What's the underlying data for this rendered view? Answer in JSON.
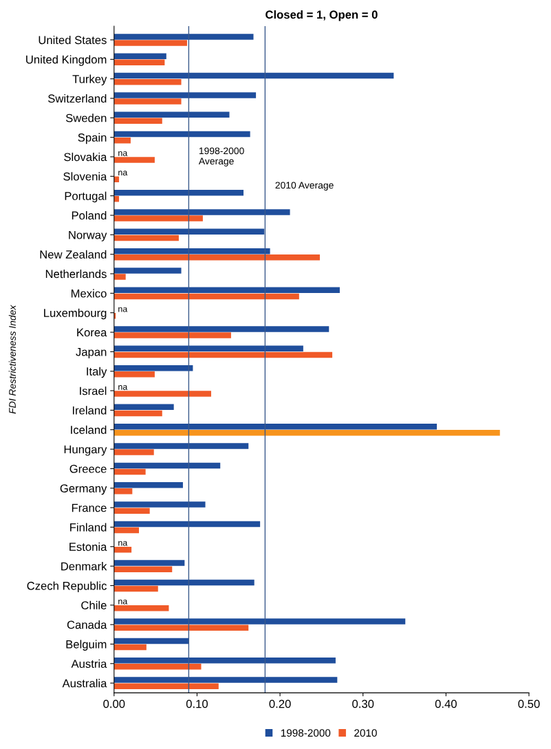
{
  "chart_data": {
    "type": "bar",
    "orientation": "horizontal",
    "title": "Closed = 1, Open = 0",
    "ylabel": "FDI Restrictiveness Index",
    "categories": [
      "United States",
      "United Kingdom",
      "Turkey",
      "Switzerland",
      "Sweden",
      "Spain",
      "Slovakia",
      "Slovenia",
      "Portugal",
      "Poland",
      "Norway",
      "New Zealand",
      "Netherlands",
      "Mexico",
      "Luxembourg",
      "Korea",
      "Japan",
      "Italy",
      "Israel",
      "Ireland",
      "Iceland",
      "Hungary",
      "Greece",
      "Germany",
      "France",
      "Finland",
      "Estonia",
      "Denmark",
      "Czech Republic",
      "Chile",
      "Canada",
      "Belguim",
      "Austria",
      "Australia"
    ],
    "series": [
      {
        "name": "1998-2000",
        "color": "#1f4e9c",
        "values": [
          0.168,
          0.063,
          0.337,
          0.171,
          0.139,
          0.164,
          null,
          null,
          0.156,
          0.212,
          0.181,
          0.188,
          0.081,
          0.272,
          null,
          0.259,
          0.228,
          0.095,
          null,
          0.072,
          0.389,
          0.162,
          0.128,
          0.083,
          0.11,
          0.176,
          null,
          0.085,
          0.169,
          null,
          0.351,
          0.09,
          0.267,
          0.269
        ]
      },
      {
        "name": "2010",
        "color": "#f05a28",
        "colors": [
          "#f05a28",
          "#f05a28",
          "#f05a28",
          "#f05a28",
          "#f05a28",
          "#f05a28",
          "#f05a28",
          "#f05a28",
          "#f05a28",
          "#f05a28",
          "#f05a28",
          "#f05a28",
          "#f05a28",
          "#f05a28",
          "#f05a28",
          "#f05a28",
          "#f05a28",
          "#f05a28",
          "#f05a28",
          "#f05a28",
          "#f7941d",
          "#f05a28",
          "#f05a28",
          "#f05a28",
          "#f05a28",
          "#f05a28",
          "#f05a28",
          "#f05a28",
          "#f05a28",
          "#f05a28",
          "#f05a28",
          "#f05a28",
          "#f05a28",
          "#f05a28"
        ],
        "values": [
          0.088,
          0.061,
          0.081,
          0.081,
          0.058,
          0.02,
          0.049,
          0.006,
          0.006,
          0.107,
          0.078,
          0.248,
          0.014,
          0.223,
          0.002,
          0.141,
          0.263,
          0.049,
          0.117,
          0.058,
          0.465,
          0.048,
          0.038,
          0.022,
          0.043,
          0.03,
          0.021,
          0.07,
          0.053,
          0.066,
          0.162,
          0.039,
          0.105,
          0.126
        ]
      }
    ],
    "xlim": [
      0,
      0.5
    ],
    "xticks": [
      {
        "value": 0,
        "label": "0.00"
      },
      {
        "value": 0.1,
        "label": "0.10"
      },
      {
        "value": 0.2,
        "label": "0.20"
      },
      {
        "value": 0.3,
        "label": "0.30"
      },
      {
        "value": 0.4,
        "label": "0.40"
      },
      {
        "value": 0.5,
        "label": "0.50"
      }
    ],
    "ref_lines": [
      {
        "axis": "x",
        "value": 0.09,
        "label": "1998-2000\nAverage",
        "color": "#3a5a8c"
      },
      {
        "axis": "x",
        "value": 0.182,
        "label": "2010 Average",
        "color": "#3a5a8c"
      }
    ],
    "annotations": [
      "na",
      "na",
      "na",
      "na",
      "na",
      "na"
    ],
    "legend": "bottom",
    "grid": false
  }
}
